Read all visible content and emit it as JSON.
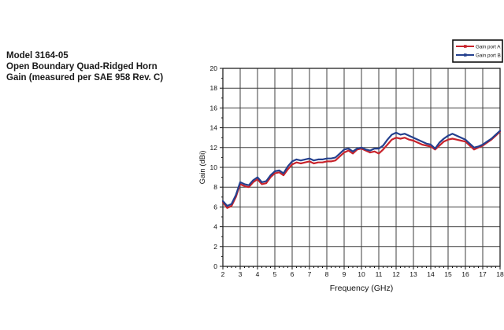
{
  "header": {
    "line1": "Model 3164-05",
    "line2": "Open Boundary Quad-Ridged Horn",
    "line3": "Gain (measured per SAE 958 Rev. C)"
  },
  "colors": {
    "port_a": "#c8232b",
    "port_b": "#24408e",
    "grid": "#3f3f3f",
    "frame": "#222222",
    "text": "#111111",
    "legend_border": "#111111",
    "background": "#ffffff"
  },
  "chart_data": {
    "type": "line",
    "title": "",
    "xlabel": "Frequency (GHz)",
    "ylabel": "Gain (dBi)",
    "xlim": [
      2,
      18
    ],
    "ylim": [
      0,
      20
    ],
    "xticks": [
      2,
      3,
      4,
      5,
      6,
      7,
      8,
      9,
      10,
      11,
      12,
      13,
      14,
      15,
      16,
      17,
      18
    ],
    "yticks": [
      0,
      2,
      4,
      6,
      8,
      10,
      12,
      14,
      16,
      18,
      20
    ],
    "x_minor_step": 0.25,
    "y_minor_step": 1,
    "grid": true,
    "legend_position": "top-right",
    "x": [
      2,
      2.25,
      2.5,
      2.75,
      3,
      3.25,
      3.5,
      3.75,
      4,
      4.25,
      4.5,
      4.75,
      5,
      5.25,
      5.5,
      5.75,
      6,
      6.25,
      6.5,
      6.75,
      7,
      7.25,
      7.5,
      7.75,
      8,
      8.25,
      8.5,
      8.75,
      9,
      9.25,
      9.5,
      9.75,
      10,
      10.25,
      10.5,
      10.75,
      11,
      11.25,
      11.5,
      11.75,
      12,
      12.25,
      12.5,
      12.75,
      13,
      13.25,
      13.5,
      13.75,
      14,
      14.25,
      14.5,
      14.75,
      15,
      15.25,
      15.5,
      15.75,
      16,
      16.25,
      16.5,
      16.75,
      17,
      17.25,
      17.5,
      17.75,
      18
    ],
    "series": [
      {
        "name": "Gain port A",
        "color": "#c8232b",
        "values": [
          6.5,
          5.9,
          6.1,
          7.0,
          8.3,
          8.1,
          8.0,
          8.5,
          8.8,
          8.3,
          8.4,
          9.0,
          9.4,
          9.5,
          9.2,
          9.8,
          10.3,
          10.5,
          10.4,
          10.5,
          10.6,
          10.4,
          10.5,
          10.5,
          10.6,
          10.6,
          10.7,
          11.1,
          11.5,
          11.7,
          11.4,
          11.8,
          11.9,
          11.7,
          11.5,
          11.6,
          11.4,
          11.8,
          12.3,
          12.8,
          13.0,
          12.9,
          13.0,
          12.8,
          12.7,
          12.5,
          12.3,
          12.2,
          12.1,
          11.8,
          12.2,
          12.6,
          12.8,
          12.9,
          12.8,
          12.7,
          12.6,
          12.2,
          11.8,
          12.0,
          12.2,
          12.5,
          12.8,
          13.2,
          13.6
        ]
      },
      {
        "name": "Gain port B",
        "color": "#24408e",
        "values": [
          6.6,
          6.1,
          6.3,
          7.2,
          8.5,
          8.3,
          8.2,
          8.7,
          9.0,
          8.5,
          8.6,
          9.2,
          9.6,
          9.7,
          9.4,
          10.1,
          10.6,
          10.8,
          10.7,
          10.8,
          10.9,
          10.7,
          10.8,
          10.8,
          10.9,
          10.9,
          11.0,
          11.4,
          11.8,
          11.9,
          11.6,
          11.9,
          12.0,
          11.8,
          11.7,
          11.9,
          11.9,
          12.2,
          12.8,
          13.3,
          13.5,
          13.3,
          13.4,
          13.2,
          13.0,
          12.8,
          12.6,
          12.4,
          12.3,
          11.9,
          12.5,
          12.9,
          13.2,
          13.4,
          13.2,
          13.0,
          12.8,
          12.4,
          12.0,
          12.1,
          12.3,
          12.6,
          12.9,
          13.3,
          13.7
        ]
      }
    ]
  }
}
